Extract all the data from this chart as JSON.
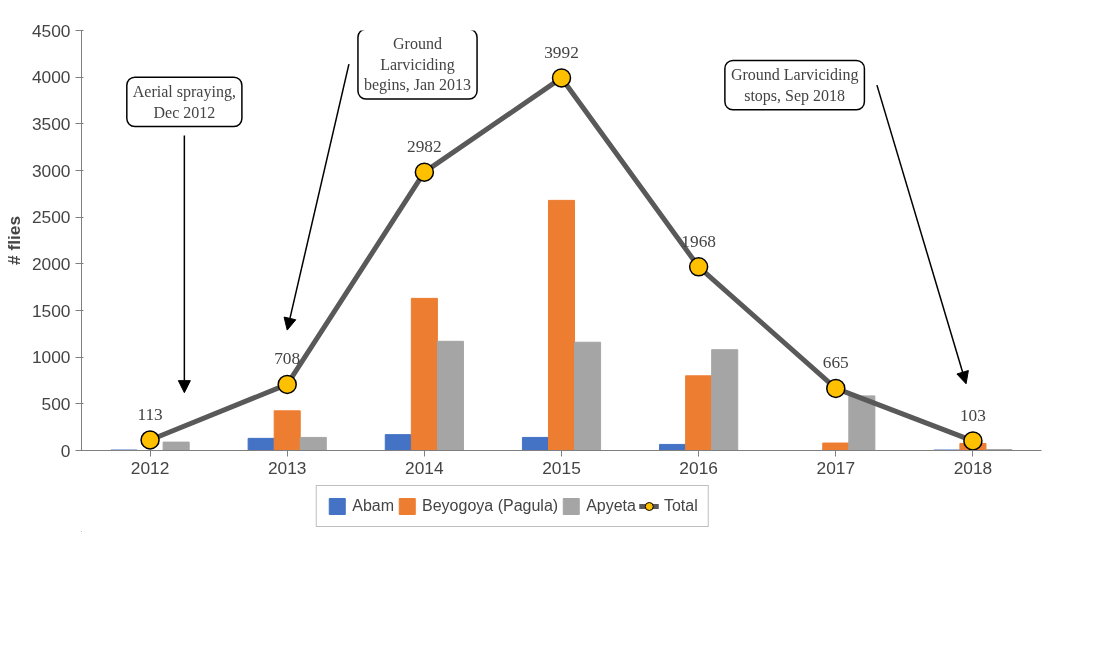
{
  "chart_data": {
    "type": "bar",
    "ylabel": "# flies",
    "categories": [
      "2012",
      "2013",
      "2014",
      "2015",
      "2016",
      "2017",
      "2018"
    ],
    "series": [
      {
        "name": "Abam",
        "color": "#4472c4",
        "values": [
          5,
          130,
          170,
          140,
          65,
          0,
          5
        ]
      },
      {
        "name": "Beyogoya (Pagula)",
        "color": "#ed7d31",
        "values": [
          null,
          425,
          1630,
          2680,
          800,
          80,
          75
        ]
      },
      {
        "name": "Apyeta",
        "color": "#a5a5a5",
        "values": [
          90,
          140,
          1170,
          1160,
          1080,
          585,
          10
        ]
      },
      {
        "name": "Total",
        "type": "line",
        "color": "#595959",
        "marker": "circle",
        "values": [
          113,
          708,
          2982,
          3992,
          1968,
          665,
          103
        ],
        "value_labels": [
          "113",
          "708",
          "2982",
          "3992",
          "1968",
          "665",
          "103"
        ]
      }
    ],
    "ylim": [
      0,
      4500
    ],
    "yticks": [
      0,
      500,
      1000,
      1500,
      2000,
      2500,
      3000,
      3500,
      4000,
      4500
    ],
    "grid": false,
    "legend": "bottom",
    "annotations": [
      "Aerial spraying,\nDec 2012",
      "Ground\nLarviciding\nbegins, Jan 2013",
      "Ground Larviciding\nstops, Sep 2018"
    ]
  }
}
